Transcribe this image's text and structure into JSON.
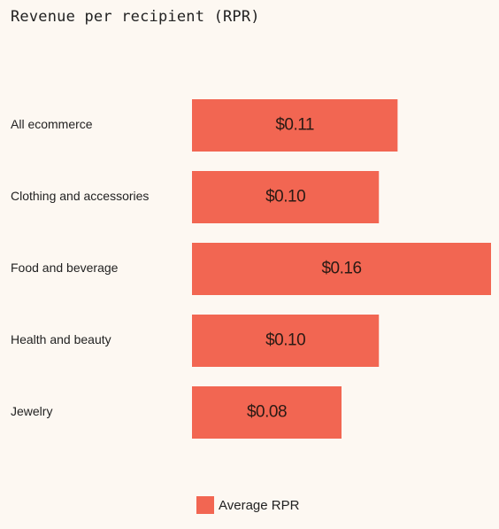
{
  "chart_data": {
    "type": "bar",
    "orientation": "horizontal",
    "title": "Revenue per recipient (RPR)",
    "categories": [
      "All ecommerce",
      "Clothing and accessories",
      "Food and beverage",
      "Health and beauty",
      "Jewelry"
    ],
    "series": [
      {
        "name": "Average RPR",
        "values": [
          0.11,
          0.1,
          0.16,
          0.1,
          0.08
        ],
        "labels": [
          "$0.11",
          "$0.10",
          "$0.16",
          "$0.10",
          "$0.08"
        ],
        "color": "#f26652"
      }
    ],
    "xlim": [
      0,
      0.16
    ],
    "grid": false,
    "legend_position": "bottom-center"
  }
}
